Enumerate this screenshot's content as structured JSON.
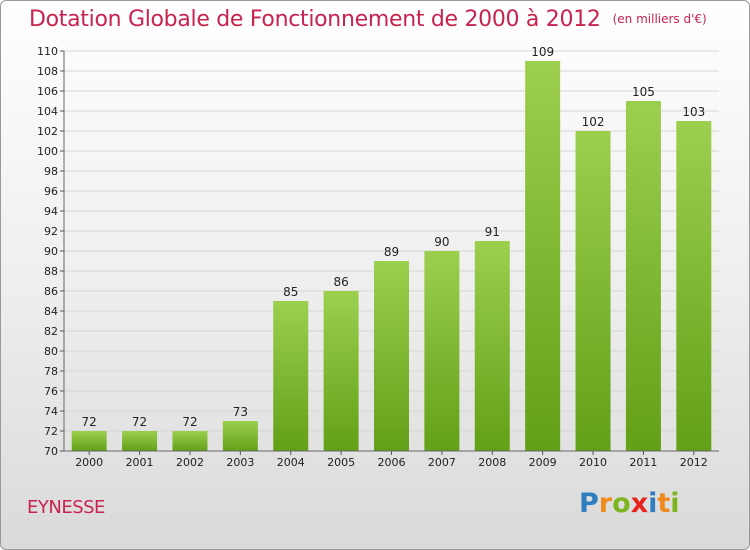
{
  "title": "Dotation Globale de Fonctionnement de 2000 à 2012",
  "unit_note": "(en milliers d'€)",
  "commune": "EYNESSE",
  "logo": {
    "letters": [
      "P",
      "r",
      "o",
      "x",
      "i",
      "t",
      "i"
    ],
    "colors": [
      "#2f7dbf",
      "#f08a1c",
      "#7cb51e",
      "#e8231e",
      "#2f7dbf",
      "#f08a1c",
      "#7cb51e"
    ]
  },
  "chart_data": {
    "type": "bar",
    "title": "Dotation Globale de Fonctionnement de 2000 à 2012",
    "ylabel": "",
    "xlabel": "",
    "categories": [
      "2000",
      "2001",
      "2002",
      "2003",
      "2004",
      "2005",
      "2006",
      "2007",
      "2008",
      "2009",
      "2010",
      "2011",
      "2012"
    ],
    "values": [
      72,
      72,
      72,
      73,
      85,
      86,
      89,
      90,
      91,
      109,
      102,
      105,
      103
    ],
    "ylim": [
      70,
      110
    ],
    "ytick_step": 2,
    "grid": true,
    "bar_color_top": "#9ccf4e",
    "bar_color_bottom": "#62a017"
  }
}
